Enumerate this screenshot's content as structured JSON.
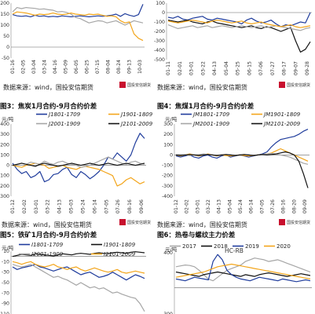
{
  "sources": [
    "数据来源：wind，国投安信期货",
    "数据来源：wind，国投安信期货",
    "数据来源：wind，国投安信期货",
    "数据来源：wind，国投安信期货"
  ],
  "brand": {
    "name": "国投安信期货",
    "sub": "SDIC ESSENCE FUTURES"
  },
  "colors": {
    "blue": "#1f3c9c",
    "gold": "#f3a51b",
    "gray": "#a6a6a6",
    "black": "#111111"
  },
  "chart_data": [
    {
      "type": "line",
      "title": "",
      "ylim": [
        -50,
        200
      ],
      "yticks": [
        "200",
        "150",
        "100",
        "50",
        "0",
        "-50"
      ],
      "xticks": [
        "01-16",
        "02-05",
        "03-04",
        "03-24",
        "04-16",
        "05-09",
        "06-05",
        "06-25",
        "07-15",
        "08-04",
        "08-24",
        "09-13",
        "10-03"
      ],
      "series": [
        {
          "color": "blue",
          "values": [
            148,
            142,
            140,
            142,
            138,
            145,
            140,
            142,
            138,
            140,
            138,
            142,
            140,
            138,
            140,
            142,
            140,
            138,
            140,
            142,
            140,
            142,
            145,
            150,
            140,
            152,
            145,
            140,
            148,
            195
          ]
        },
        {
          "color": "gray",
          "values": [
            160,
            180,
            175,
            180,
            178,
            176,
            172,
            174,
            170,
            168,
            160,
            162,
            158,
            150,
            135,
            130,
            120,
            110,
            115,
            120,
            118,
            110,
            115,
            120,
            110,
            100,
            110,
            120,
            115,
            110
          ]
        },
        {
          "color": "gold",
          "values": [
            150,
            160,
            158,
            155,
            150,
            145,
            150,
            148,
            150,
            155,
            150,
            148,
            150,
            155,
            150,
            148,
            145,
            150,
            148,
            150,
            145,
            140,
            142,
            138,
            120,
            110,
            115,
            60,
            40,
            30
          ]
        }
      ]
    },
    {
      "type": "line",
      "title": "",
      "ylim": [
        -500,
        100
      ],
      "yticks": [
        "100",
        "0",
        "-100",
        "-200",
        "-300",
        "-400",
        "-500"
      ],
      "xticks": [
        "01-11",
        "02-01",
        "03-01",
        "03-22",
        "04-13",
        "05-04",
        "05-25",
        "06-15",
        "07-06",
        "07-27",
        "08-17",
        "09-07",
        "09-28"
      ],
      "series": [
        {
          "color": "blue",
          "values": [
            -50,
            -60,
            -40,
            -70,
            -80,
            -60,
            -50,
            -40,
            -70,
            -80,
            -60,
            -70,
            -80,
            -90,
            -100,
            -120,
            -80,
            -60,
            -90,
            -110,
            -100,
            -80,
            -120,
            -150,
            -130,
            -140,
            -120,
            -100,
            -110,
            0
          ]
        },
        {
          "color": "black",
          "values": [
            -80,
            -90,
            -100,
            -90,
            -80,
            -100,
            -110,
            -120,
            -100,
            -90,
            -110,
            -120,
            -130,
            -140,
            -150,
            -160,
            -150,
            -140,
            -160,
            -170,
            -150,
            -160,
            -180,
            -200,
            -180,
            -160,
            -300,
            -420,
            -390,
            -310
          ]
        },
        {
          "color": "gray",
          "values": [
            -130,
            -150,
            -170,
            -160,
            -150,
            -140,
            -160,
            -150,
            -140,
            -160,
            -150,
            -140,
            -150,
            -160,
            -150,
            -140,
            -150,
            -160,
            -150,
            -140,
            -160,
            -150,
            -140,
            -150,
            -160,
            -170,
            -180,
            -190,
            -170,
            -160
          ]
        },
        {
          "color": "gold",
          "values": [
            -90,
            -100,
            -110,
            -100,
            -90,
            -80,
            -90,
            -100,
            -110,
            -90,
            -80,
            -90,
            -100,
            -110,
            -100,
            -90,
            -110,
            -120,
            -110,
            -100,
            -120,
            -130,
            -140,
            -150,
            -140,
            -130,
            -150,
            -160,
            -150,
            -140
          ]
        }
      ]
    },
    {
      "type": "line",
      "title": "图3：焦炭1月合约-9月合约价差",
      "unit": "元/吨",
      "ylim": [
        -300,
        400
      ],
      "yticks": [
        "400",
        "300",
        "200",
        "100",
        "0",
        "-100",
        "-200",
        "-300"
      ],
      "xticks": [
        "01-12",
        "02-02",
        "03-01",
        "03-22",
        "04-13",
        "05-03",
        "05-24",
        "06-14",
        "07-05",
        "07-26",
        "08-16",
        "09-06"
      ],
      "legend": [
        "J1801-1709",
        "J1901-1809",
        "J2001-1909",
        "J2101-2009"
      ],
      "series": [
        {
          "name": "J1801-1709",
          "color": "blue",
          "values": [
            20,
            -40,
            -80,
            -60,
            -120,
            -100,
            -60,
            -160,
            -140,
            -90,
            -80,
            -40,
            -20,
            -90,
            -120,
            -60,
            -90,
            -130,
            -100,
            -60,
            0,
            80,
            60,
            120,
            80,
            40,
            100,
            220,
            310,
            260
          ]
        },
        {
          "name": "J1901-1809",
          "color": "gold",
          "values": [
            0,
            -10,
            -20,
            0,
            10,
            20,
            10,
            0,
            -30,
            -20,
            -10,
            0,
            -20,
            -30,
            -40,
            -20,
            -10,
            -20,
            -30,
            -40,
            -60,
            -80,
            -100,
            -200,
            -180,
            -140,
            -120,
            -150,
            -180,
            -160
          ]
        },
        {
          "name": "J2001-1909",
          "color": "gray",
          "values": [
            0,
            10,
            20,
            10,
            30,
            20,
            10,
            40,
            20,
            10,
            30,
            40,
            20,
            10,
            0,
            -20,
            -10,
            0,
            20,
            40,
            60,
            80,
            60,
            40,
            20,
            10,
            30,
            40,
            20,
            10
          ]
        },
        {
          "name": "J2101-2009",
          "color": "black",
          "values": [
            0,
            10,
            20,
            10,
            0,
            -10,
            10,
            20,
            10,
            0,
            -10,
            0,
            10,
            20,
            10,
            0,
            10,
            20,
            10,
            0,
            10,
            20,
            10,
            0,
            10,
            20,
            10,
            0,
            10,
            20
          ]
        }
      ]
    },
    {
      "type": "line",
      "title": "图4：焦煤1月合约-9月合约价差",
      "unit": "元/吨",
      "ylim": [
        -400,
        300
      ],
      "yticks": [
        "300",
        "200",
        "100",
        "0",
        "-100",
        "-200",
        "-300",
        "-400"
      ],
      "xticks": [
        "01-12",
        "02-02",
        "03-01",
        "03-22",
        "04-13",
        "05-04",
        "05-24",
        "06-14",
        "07-05",
        "07-26",
        "08-16",
        "08-20",
        "09-09"
      ],
      "legend": [
        "JM1801-1709",
        "JM1901-1809",
        "JM2001-1909",
        "JM2101-2009"
      ],
      "series": [
        {
          "name": "JM1801-1709",
          "color": "blue",
          "values": [
            -10,
            -20,
            -10,
            0,
            -20,
            -30,
            -10,
            0,
            -20,
            -30,
            -10,
            0,
            -20,
            -10,
            0,
            -10,
            -20,
            -10,
            0,
            10,
            30,
            80,
            120,
            150,
            160,
            170,
            180,
            200,
            230,
            250
          ]
        },
        {
          "name": "JM1901-1809",
          "color": "gold",
          "values": [
            0,
            -10,
            0,
            10,
            0,
            -10,
            0,
            10,
            0,
            -10,
            0,
            -5,
            -10,
            -5,
            0,
            -5,
            -10,
            -5,
            0,
            5,
            10,
            20,
            40,
            60,
            40,
            20,
            0,
            -20,
            -40,
            -60
          ]
        },
        {
          "name": "JM2001-1909",
          "color": "gray",
          "values": [
            0,
            5,
            0,
            -5,
            0,
            5,
            10,
            5,
            0,
            -5,
            0,
            5,
            0,
            -5,
            0,
            5,
            0,
            -5,
            0,
            5,
            10,
            15,
            10,
            0,
            -10,
            -20,
            -40,
            -60,
            -80,
            -90
          ]
        },
        {
          "name": "JM2101-2009",
          "color": "black",
          "values": [
            0,
            -5,
            0,
            5,
            0,
            -5,
            0,
            5,
            0,
            -5,
            0,
            5,
            0,
            -5,
            0,
            5,
            0,
            -5,
            0,
            5,
            0,
            5,
            10,
            20,
            30,
            20,
            0,
            -60,
            -180,
            -320
          ]
        }
      ]
    },
    {
      "type": "line",
      "title": "图5：铁矿1月合约-9月合约价差",
      "unit": "元/吨",
      "ylim": [
        -110,
        10
      ],
      "yticks": [
        "10",
        "-10",
        "-30",
        "-50",
        "-70",
        "-90",
        "-110"
      ],
      "xticks": [],
      "legend": [
        "I1801-1709",
        "I1901-1809",
        "I2001-1909",
        "I2101-2009"
      ],
      "series": [
        {
          "name": "I1801-1709",
          "color": "blue",
          "values": [
            -20,
            -25,
            -22,
            -20,
            -18,
            -15,
            -20,
            -22,
            -25,
            -28,
            -25,
            -22,
            -20,
            -25,
            -30,
            -35,
            -32,
            -30,
            -35,
            -40,
            -38,
            -35,
            -30,
            -35,
            -40,
            -45,
            -40,
            -35,
            -38,
            -42
          ]
        },
        {
          "name": "I1901-1809",
          "color": "black",
          "values": [
            0,
            2,
            4,
            3,
            2,
            5,
            4,
            3,
            2,
            1,
            3,
            5,
            4,
            3,
            5,
            6,
            5,
            4,
            6,
            7,
            6,
            5,
            7,
            8,
            7,
            6,
            8,
            9,
            8,
            7
          ]
        },
        {
          "name": "I2001-1909",
          "color": "gray",
          "values": [
            -15,
            -18,
            -20,
            -18,
            -15,
            -20,
            -25,
            -30,
            -35,
            -40,
            -38,
            -42,
            -45,
            -50,
            -55,
            -50,
            -55,
            -60,
            -58,
            -62,
            -60,
            -65,
            -70,
            -68,
            -72,
            -75,
            -78,
            -80,
            -90,
            -105
          ]
        },
        {
          "name": "I2101-2009",
          "color": "gold",
          "values": [
            -10,
            -12,
            -15,
            -12,
            -10,
            -15,
            -18,
            -20,
            -18,
            -15,
            -20,
            -22,
            -25,
            -22,
            -20,
            -25,
            -28,
            -25,
            -22,
            -25,
            -28,
            -30,
            -28,
            -25,
            -30,
            -32,
            -30,
            -28,
            -30,
            -32
          ]
        }
      ]
    },
    {
      "type": "line",
      "title": "图6：热卷与螺纹主力价差",
      "chart_title": "HC-RB",
      "unit": "元/吨",
      "ylim": [
        -300,
        400
      ],
      "yticks": [
        "400",
        "300"
      ],
      "xticks": [],
      "legend": [
        "2017",
        "2018",
        "2019",
        "2020"
      ],
      "series": [
        {
          "name": "2017",
          "color": "gray",
          "values": [
            240,
            250,
            260,
            255,
            240,
            200,
            150,
            100,
            80,
            120,
            160,
            200,
            220,
            240,
            260,
            300,
            320,
            340,
            330,
            320,
            300,
            310,
            320,
            300,
            280,
            260,
            240,
            220,
            200,
            180
          ]
        },
        {
          "name": "2018",
          "color": "black",
          "values": [
            180,
            170,
            160,
            150,
            140,
            130,
            150,
            160,
            170,
            180,
            170,
            160,
            150,
            140,
            130,
            150,
            140,
            130,
            150,
            160,
            170,
            160,
            150,
            140,
            130,
            140,
            150,
            160,
            150,
            140
          ]
        },
        {
          "name": "2019",
          "color": "blue",
          "values": [
            100,
            90,
            80,
            100,
            120,
            110,
            100,
            90,
            300,
            380,
            320,
            200,
            150,
            120,
            100,
            90,
            80,
            100,
            120,
            110,
            100,
            90,
            80,
            100,
            90,
            80,
            70,
            80,
            90,
            80
          ]
        },
        {
          "name": "2020",
          "color": "gold",
          "values": [
            120,
            130,
            140,
            150,
            160,
            170,
            180,
            200,
            220,
            240,
            250,
            260,
            270,
            260,
            250,
            240,
            230,
            220,
            210,
            200,
            190,
            180,
            170,
            160,
            150,
            140,
            130,
            120,
            110,
            100
          ]
        }
      ]
    }
  ]
}
